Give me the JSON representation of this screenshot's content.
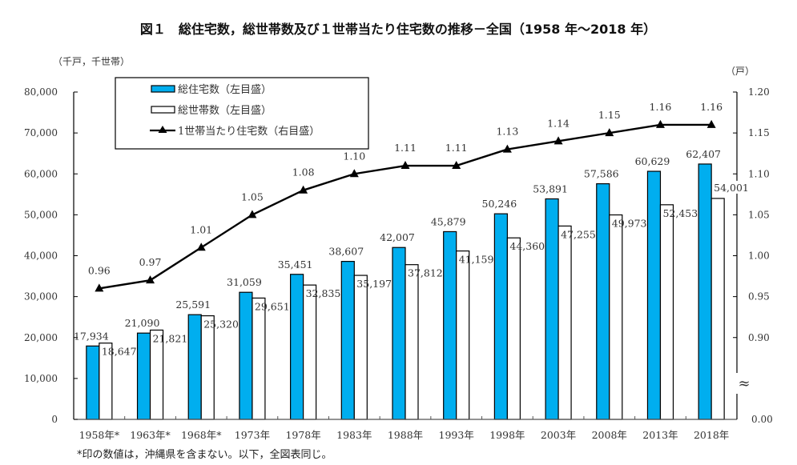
{
  "chart_data": {
    "type": "bar",
    "title": "図１　総住宅数，総世帯数及び１世帯当たり住宅数の推移－全国（1958 年～2018 年）",
    "left_axis": {
      "unit_label": "（千戸，千世帯）",
      "ylim": [
        0,
        80000
      ],
      "ticks": [
        0,
        10000,
        20000,
        30000,
        40000,
        50000,
        60000,
        70000,
        80000
      ],
      "tick_labels": [
        "0",
        "10,000",
        "20,000",
        "30,000",
        "40,000",
        "50,000",
        "60,000",
        "70,000",
        "80,000"
      ]
    },
    "right_axis": {
      "unit_label": "（戸）",
      "ylim_display": [
        0.85,
        1.2
      ],
      "axis_break": true,
      "break_symbol": "≈",
      "ticks": [
        0.9,
        0.95,
        1.0,
        1.05,
        1.1,
        1.15,
        1.2
      ],
      "tick_labels": [
        "0.90",
        "0.95",
        "1.00",
        "1.05",
        "1.10",
        "1.15",
        "1.20"
      ],
      "zero_label": "0.00"
    },
    "categories": [
      "1958年*",
      "1963年*",
      "1968年*",
      "1973年",
      "1978年",
      "1983年",
      "1988年",
      "1993年",
      "1998年",
      "2003年",
      "2008年",
      "2013年",
      "2018年"
    ],
    "series": [
      {
        "name": "総住宅数（左目盛）",
        "type": "bar",
        "axis": "left",
        "color": "#00AEEF",
        "values": [
          17934,
          21090,
          25591,
          31059,
          35451,
          38607,
          42007,
          45879,
          50246,
          53891,
          57586,
          60629,
          62407
        ],
        "labels": [
          "17,934",
          "21,090",
          "25,591",
          "31,059",
          "35,451",
          "38,607",
          "42,007",
          "45,879",
          "50,246",
          "53,891",
          "57,586",
          "60,629",
          "62,407"
        ]
      },
      {
        "name": "総世帯数（左目盛）",
        "type": "bar",
        "axis": "left",
        "color": "#FFFFFF",
        "values": [
          18647,
          21821,
          25320,
          29651,
          32835,
          35197,
          37812,
          41159,
          44360,
          47255,
          49973,
          52453,
          54001
        ],
        "labels": [
          "18,647",
          "21,821",
          "25,320",
          "29,651",
          "32,835",
          "35,197",
          "37,812",
          "41,159",
          "44,360",
          "47,255",
          "49,973",
          "52,453",
          "54,001"
        ]
      },
      {
        "name": "1世帯当たり住宅数（右目盛）",
        "type": "line",
        "axis": "right",
        "color": "#000000",
        "marker": "triangle",
        "values": [
          0.96,
          0.97,
          1.01,
          1.05,
          1.08,
          1.1,
          1.11,
          1.11,
          1.13,
          1.14,
          1.15,
          1.16,
          1.16
        ],
        "labels": [
          "0.96",
          "0.97",
          "1.01",
          "1.05",
          "1.08",
          "1.10",
          "1.11",
          "1.11",
          "1.13",
          "1.14",
          "1.15",
          "1.16",
          "1.16"
        ]
      }
    ],
    "legend": {
      "placement": "top-left",
      "entries": [
        "総住宅数（左目盛）",
        "総世帯数（左目盛）",
        "1世帯当たり住宅数（右目盛）"
      ]
    },
    "grid": false,
    "footnote": "*印の数値は，沖縄県を含まない。以下，全図表同じ。"
  }
}
